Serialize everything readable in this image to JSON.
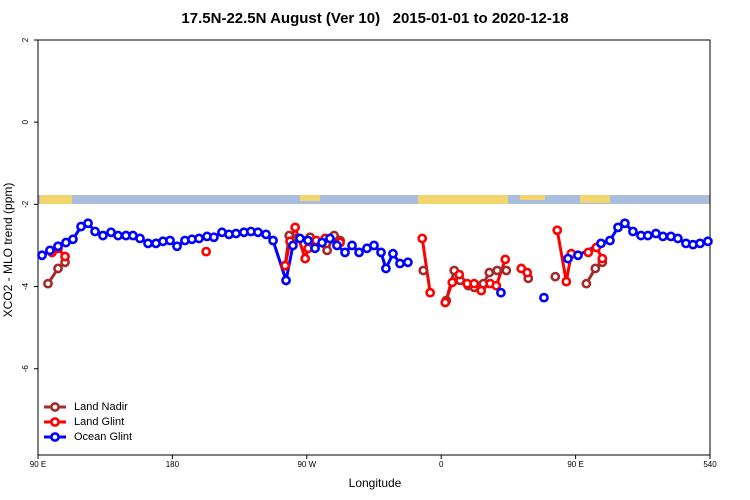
{
  "chart_data": {
    "type": "line",
    "title": "17.5N-22.5N August (Ver 10)   2015-01-01 to 2020-12-18",
    "x_label": "Longitude",
    "y_label": "XCO2 - MLO trend (ppm)",
    "xlim": [
      90,
      540
    ],
    "xticks": [
      {
        "value": 90,
        "label": "90 E"
      },
      180,
      {
        "value": 270,
        "label": "90 W"
      },
      {
        "value": 360,
        "label": "0"
      },
      {
        "value": 450,
        "label": "90 E"
      },
      540
    ],
    "ylim": [
      -8.1,
      2
    ],
    "yticks": [
      -6,
      -4,
      -2,
      0,
      2
    ],
    "legend": "bottom-left",
    "series": [
      {
        "name": "Land Nadir",
        "color": "#a52a2a",
        "x": [
          96.7,
          103.4,
          108.1,
          null,
          255.5,
          258.2,
          263.5,
          272.2,
          277.6,
          283.6,
          288.3,
          292.3,
          null,
          348.0,
          null,
          363.4,
          368.7,
          372.7,
          378.1,
          382.1,
          388.2,
          392.2,
          397.5,
          403.6,
          null,
          418.3,
          null,
          436.4,
          null,
          457.2,
          463.2,
          467.9
        ],
        "values": [
          -3.93,
          -3.56,
          -3.41,
          null,
          -3.49,
          -2.76,
          -2.83,
          -2.8,
          -2.93,
          -3.12,
          -2.76,
          -2.88,
          null,
          -3.61,
          null,
          -4.34,
          -3.61,
          -3.85,
          -3.98,
          -4.02,
          -3.93,
          -3.66,
          -3.61,
          -3.61,
          null,
          -3.8,
          null,
          -3.76,
          null,
          -3.93,
          -3.56,
          -3.41
        ]
      },
      {
        "name": "Land Glint",
        "color": "#ff0000",
        "x": [
          99.4,
          103.4,
          108.1,
          null,
          202.6,
          null,
          255.5,
          258.8,
          262.2,
          268.9,
          270.9,
          276.3,
          282.3,
          292.3,
          null,
          347.3,
          352.6,
          null,
          362.7,
          367.4,
          372.1,
          377.4,
          382.1,
          386.8,
          392.8,
          396.9,
          402.9,
          null,
          413.6,
          417.6,
          null,
          437.7,
          443.8,
          447.1,
          null,
          458.5,
          463.9,
          467.9
        ],
        "values": [
          -3.17,
          -3.07,
          -3.27,
          null,
          -3.15,
          null,
          -3.49,
          -2.9,
          -2.56,
          -3.32,
          -3.07,
          -2.88,
          -2.83,
          -2.93,
          null,
          -2.83,
          -4.15,
          null,
          -4.39,
          -3.9,
          -3.71,
          -3.93,
          -3.93,
          -4.1,
          -3.93,
          -3.98,
          -3.34,
          null,
          -3.56,
          -3.66,
          null,
          -2.63,
          -3.88,
          -3.2,
          null,
          -3.17,
          -3.05,
          -3.32
        ]
      },
      {
        "name": "Ocean Glint",
        "color": "#0000ff",
        "x": [
          92.7,
          98.0,
          103.4,
          108.7,
          113.4,
          118.8,
          123.5,
          128.2,
          133.5,
          138.9,
          143.6,
          148.9,
          153.6,
          158.3,
          163.7,
          169.0,
          173.7,
          178.4,
          183.1,
          188.4,
          193.1,
          197.8,
          203.2,
          207.8,
          213.2,
          217.9,
          222.6,
          227.9,
          232.6,
          237.3,
          242.7,
          247.4,
          256.1,
          260.7,
          265.4,
          270.8,
          275.5,
          280.2,
          285.5,
          290.2,
          295.6,
          300.3,
          305.0,
          310.3,
          315.0,
          319.7,
          323.0,
          327.7,
          332.4,
          337.7,
          null,
          400.0,
          null,
          428.8,
          null,
          444.9,
          451.6,
          467.0,
          473.0,
          478.4,
          483.0,
          488.4,
          493.8,
          498.4,
          503.8,
          508.5,
          513.8,
          518.5,
          523.9,
          528.6,
          533.3,
          538.6
        ],
        "values": [
          -3.24,
          -3.12,
          -3.02,
          -2.93,
          -2.85,
          -2.54,
          -2.46,
          -2.66,
          -2.76,
          -2.68,
          -2.76,
          -2.76,
          -2.76,
          -2.83,
          -2.95,
          -2.95,
          -2.9,
          -2.88,
          -3.02,
          -2.88,
          -2.85,
          -2.83,
          -2.78,
          -2.8,
          -2.68,
          -2.73,
          -2.71,
          -2.68,
          -2.66,
          -2.68,
          -2.73,
          -2.88,
          -3.85,
          -3.0,
          -2.83,
          -2.88,
          -3.07,
          -2.93,
          -2.83,
          -3.0,
          -3.17,
          -3.0,
          -3.17,
          -3.07,
          -3.0,
          -3.17,
          -3.56,
          -3.2,
          -3.44,
          -3.41,
          null,
          -4.15,
          null,
          -4.27,
          null,
          -3.32,
          -3.24,
          -2.95,
          -2.88,
          -2.56,
          -2.46,
          -2.66,
          -2.76,
          -2.76,
          -2.71,
          -2.78,
          -2.78,
          -2.83,
          -2.95,
          -2.98,
          -2.95,
          -2.9
        ]
      }
    ]
  }
}
